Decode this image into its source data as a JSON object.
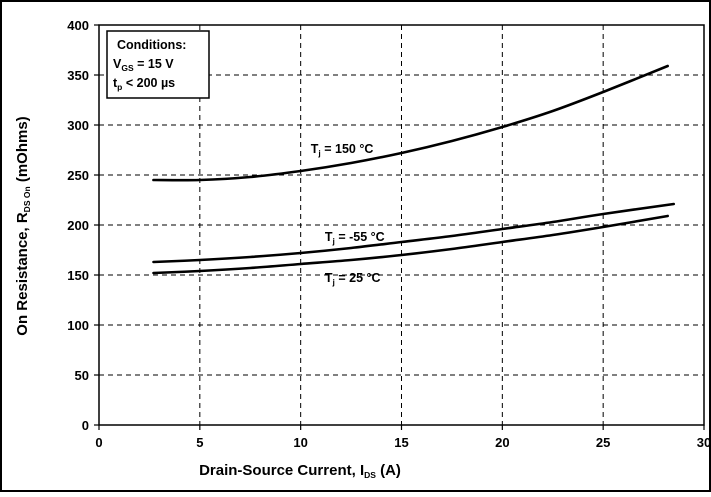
{
  "chart_data": {
    "type": "line",
    "xlabel": "Drain-Source Current, I",
    "xlabel_sub": "DS",
    "xlabel_suffix": " (A)",
    "ylabel": "On Resistance, R",
    "ylabel_sub": "DS On",
    "ylabel_suffix": " (mOhms)",
    "xlim": [
      0,
      30
    ],
    "ylim": [
      0,
      400
    ],
    "xticks": [
      0,
      5,
      10,
      15,
      20,
      25,
      30
    ],
    "yticks": [
      0,
      50,
      100,
      150,
      200,
      250,
      300,
      350,
      400
    ],
    "grid": true,
    "conditions": {
      "title": "Conditions:",
      "vgs_prefix": "V",
      "vgs_sub": "GS",
      "vgs_value": " = 15 V",
      "tp_prefix": "t",
      "tp_sub": "p",
      "tp_value": " < 200 µs"
    },
    "series": [
      {
        "label_prefix": "T",
        "label_sub": "j",
        "label_value": " = 150 °C",
        "label_at": [
          10.5,
          272
        ],
        "x": [
          2.7,
          5,
          7.5,
          10,
          12.5,
          15,
          17.5,
          20,
          22.5,
          25,
          28.2
        ],
        "y": [
          245,
          245,
          248,
          254,
          262,
          272,
          284,
          298,
          314,
          333,
          359
        ]
      },
      {
        "label_prefix": "T",
        "label_sub": "j",
        "label_value": " = -55 °C",
        "label_at": [
          11.2,
          184
        ],
        "x": [
          2.7,
          5,
          7.5,
          10,
          12.5,
          15,
          17.5,
          20,
          22.5,
          25,
          28.5
        ],
        "y": [
          163,
          165,
          168,
          172,
          177,
          183,
          189,
          196,
          203,
          211,
          221
        ]
      },
      {
        "label_prefix": "T",
        "label_sub": "j",
        "label_value": " = 25 °C",
        "label_at": [
          11.2,
          143
        ],
        "x": [
          2.7,
          5,
          7.5,
          10,
          12.5,
          15,
          17.5,
          20,
          22.5,
          25,
          28.2
        ],
        "y": [
          152,
          154,
          157,
          161,
          165,
          170,
          176,
          183,
          190,
          198,
          209
        ]
      }
    ]
  }
}
